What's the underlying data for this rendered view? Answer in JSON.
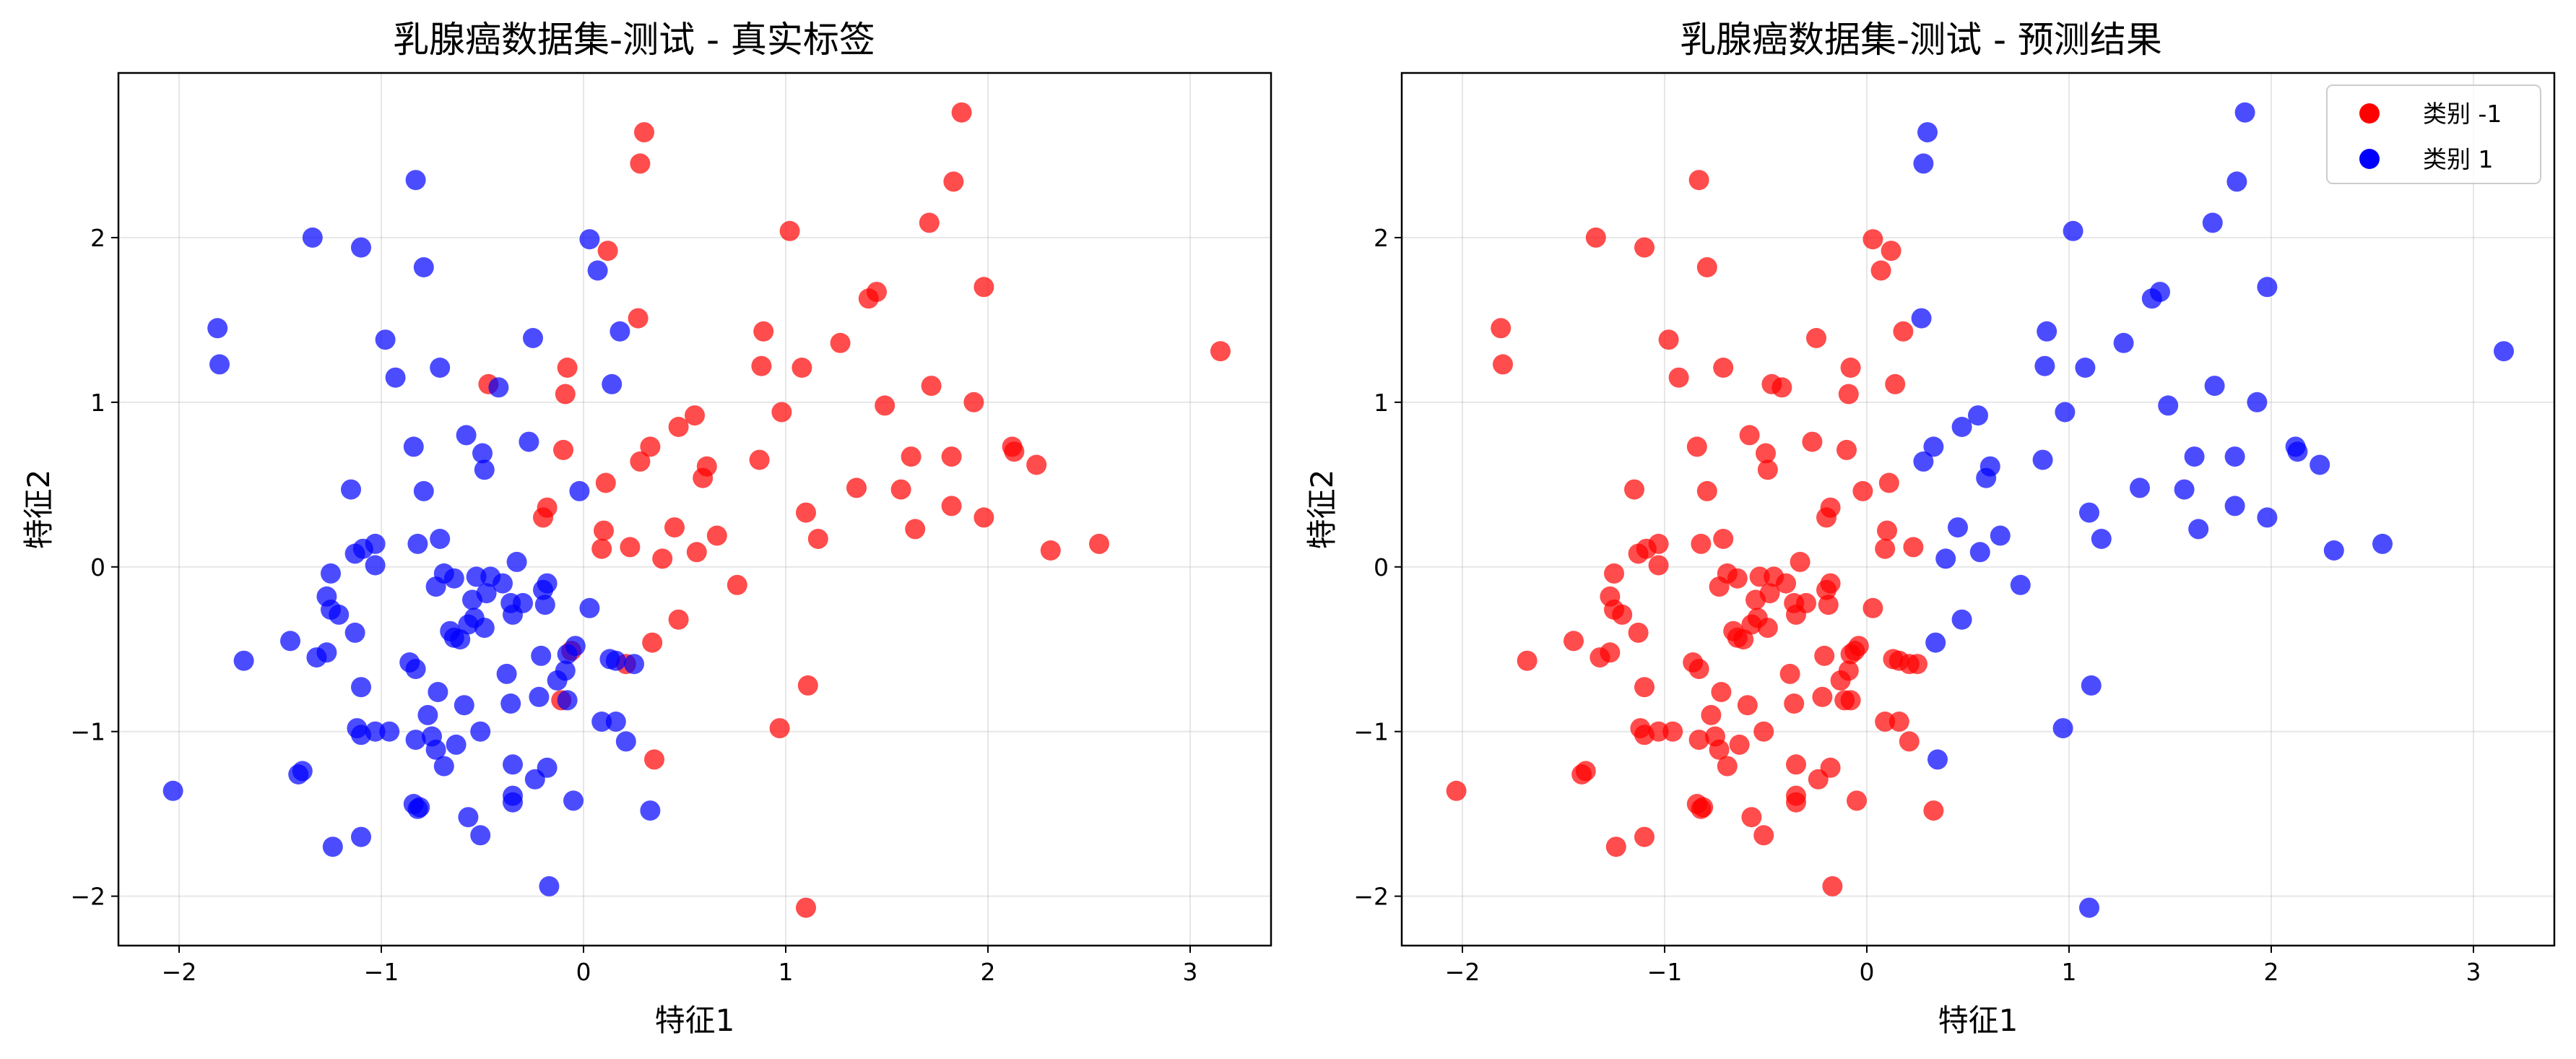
{
  "colors": {
    "class_neg1": "#ff0000",
    "class_1": "#0000ff"
  },
  "chart_data": [
    {
      "type": "scatter",
      "title": "乳腺癌数据集-测试 - 真实标签",
      "xlabel": "特征1",
      "ylabel": "特征2",
      "xlim": [
        -2.3,
        3.4
      ],
      "ylim": [
        -2.3,
        3.0
      ],
      "xticks": [
        -2,
        -1,
        0,
        1,
        2,
        3
      ],
      "yticks": [
        -2,
        -1,
        0,
        1,
        2
      ],
      "grid": true,
      "legend": "none",
      "coloring": "true_label"
    },
    {
      "type": "scatter",
      "title": "乳腺癌数据集-测试 - 预测结果",
      "xlabel": "特征1",
      "ylabel": "特征2",
      "xlim": [
        -2.3,
        3.4
      ],
      "ylim": [
        -2.3,
        3.0
      ],
      "xticks": [
        -2,
        -1,
        0,
        1,
        2,
        3
      ],
      "yticks": [
        -2,
        -1,
        0,
        1,
        2
      ],
      "grid": true,
      "legend": "top-right",
      "legend_entries": [
        "类别 -1",
        "类别 1"
      ],
      "coloring": "predicted_label"
    }
  ],
  "tick_labels": {
    "x": [
      "−2",
      "−1",
      "0",
      "1",
      "2",
      "3"
    ],
    "y": [
      "−2",
      "−1",
      "0",
      "1",
      "2"
    ]
  },
  "points": [
    {
      "x": 0.3,
      "y": 2.64,
      "t": -1,
      "p": 1
    },
    {
      "x": 0.28,
      "y": 2.45,
      "t": -1,
      "p": 1
    },
    {
      "x": 1.87,
      "y": 2.76,
      "t": -1,
      "p": 1
    },
    {
      "x": 1.83,
      "y": 2.34,
      "t": -1,
      "p": 1
    },
    {
      "x": 1.71,
      "y": 2.09,
      "t": -1,
      "p": 1
    },
    {
      "x": 1.02,
      "y": 2.04,
      "t": -1,
      "p": 1
    },
    {
      "x": 0.12,
      "y": 1.92,
      "t": -1,
      "p": -1
    },
    {
      "x": 1.98,
      "y": 1.7,
      "t": -1,
      "p": 1
    },
    {
      "x": 1.45,
      "y": 1.67,
      "t": -1,
      "p": 1
    },
    {
      "x": 1.41,
      "y": 1.63,
      "t": -1,
      "p": 1
    },
    {
      "x": 0.27,
      "y": 1.51,
      "t": -1,
      "p": 1
    },
    {
      "x": 0.89,
      "y": 1.43,
      "t": -1,
      "p": 1
    },
    {
      "x": 1.27,
      "y": 1.36,
      "t": -1,
      "p": 1
    },
    {
      "x": 3.15,
      "y": 1.31,
      "t": -1,
      "p": 1
    },
    {
      "x": 0.88,
      "y": 1.22,
      "t": -1,
      "p": 1
    },
    {
      "x": 1.08,
      "y": 1.21,
      "t": -1,
      "p": 1
    },
    {
      "x": -0.08,
      "y": 1.21,
      "t": -1,
      "p": -1
    },
    {
      "x": -0.47,
      "y": 1.11,
      "t": -1,
      "p": -1
    },
    {
      "x": 1.72,
      "y": 1.1,
      "t": -1,
      "p": 1
    },
    {
      "x": -0.09,
      "y": 1.05,
      "t": -1,
      "p": -1
    },
    {
      "x": 1.49,
      "y": 0.98,
      "t": -1,
      "p": 1
    },
    {
      "x": 1.93,
      "y": 1.0,
      "t": -1,
      "p": 1
    },
    {
      "x": 0.98,
      "y": 0.94,
      "t": -1,
      "p": 1
    },
    {
      "x": 0.55,
      "y": 0.92,
      "t": -1,
      "p": 1
    },
    {
      "x": 0.47,
      "y": 0.85,
      "t": -1,
      "p": 1
    },
    {
      "x": 0.33,
      "y": 0.73,
      "t": -1,
      "p": 1
    },
    {
      "x": 2.12,
      "y": 0.73,
      "t": -1,
      "p": 1
    },
    {
      "x": 2.13,
      "y": 0.7,
      "t": -1,
      "p": 1
    },
    {
      "x": -0.1,
      "y": 0.71,
      "t": -1,
      "p": -1
    },
    {
      "x": 1.62,
      "y": 0.67,
      "t": -1,
      "p": 1
    },
    {
      "x": 1.82,
      "y": 0.67,
      "t": -1,
      "p": 1
    },
    {
      "x": 0.87,
      "y": 0.65,
      "t": -1,
      "p": 1
    },
    {
      "x": 0.28,
      "y": 0.64,
      "t": -1,
      "p": 1
    },
    {
      "x": 2.24,
      "y": 0.62,
      "t": -1,
      "p": 1
    },
    {
      "x": 0.61,
      "y": 0.61,
      "t": -1,
      "p": 1
    },
    {
      "x": 0.59,
      "y": 0.54,
      "t": -1,
      "p": 1
    },
    {
      "x": 0.11,
      "y": 0.51,
      "t": -1,
      "p": -1
    },
    {
      "x": 1.35,
      "y": 0.48,
      "t": -1,
      "p": 1
    },
    {
      "x": 1.57,
      "y": 0.47,
      "t": -1,
      "p": 1
    },
    {
      "x": 1.82,
      "y": 0.37,
      "t": -1,
      "p": 1
    },
    {
      "x": -0.18,
      "y": 0.36,
      "t": -1,
      "p": -1
    },
    {
      "x": 1.1,
      "y": 0.33,
      "t": -1,
      "p": 1
    },
    {
      "x": -0.2,
      "y": 0.3,
      "t": -1,
      "p": -1
    },
    {
      "x": 1.98,
      "y": 0.3,
      "t": -1,
      "p": 1
    },
    {
      "x": 0.45,
      "y": 0.24,
      "t": -1,
      "p": 1
    },
    {
      "x": 1.64,
      "y": 0.23,
      "t": -1,
      "p": 1
    },
    {
      "x": 0.1,
      "y": 0.22,
      "t": -1,
      "p": -1
    },
    {
      "x": 0.66,
      "y": 0.19,
      "t": -1,
      "p": 1
    },
    {
      "x": 1.16,
      "y": 0.17,
      "t": -1,
      "p": 1
    },
    {
      "x": 2.55,
      "y": 0.14,
      "t": -1,
      "p": 1
    },
    {
      "x": 0.23,
      "y": 0.12,
      "t": -1,
      "p": -1
    },
    {
      "x": 0.09,
      "y": 0.11,
      "t": -1,
      "p": -1
    },
    {
      "x": 2.31,
      "y": 0.1,
      "t": -1,
      "p": 1
    },
    {
      "x": 0.56,
      "y": 0.09,
      "t": -1,
      "p": 1
    },
    {
      "x": 0.39,
      "y": 0.05,
      "t": -1,
      "p": 1
    },
    {
      "x": 0.76,
      "y": -0.11,
      "t": -1,
      "p": 1
    },
    {
      "x": 0.47,
      "y": -0.32,
      "t": -1,
      "p": 1
    },
    {
      "x": 0.34,
      "y": -0.46,
      "t": -1,
      "p": 1
    },
    {
      "x": -0.06,
      "y": -0.51,
      "t": -1,
      "p": -1
    },
    {
      "x": 0.21,
      "y": -0.59,
      "t": -1,
      "p": -1
    },
    {
      "x": 1.11,
      "y": -0.72,
      "t": -1,
      "p": 1
    },
    {
      "x": -0.11,
      "y": -0.81,
      "t": -1,
      "p": -1
    },
    {
      "x": 0.97,
      "y": -0.98,
      "t": -1,
      "p": 1
    },
    {
      "x": 0.35,
      "y": -1.17,
      "t": -1,
      "p": 1
    },
    {
      "x": 1.1,
      "y": -2.07,
      "t": -1,
      "p": 1
    },
    {
      "x": -0.83,
      "y": 2.35,
      "t": 1,
      "p": -1
    },
    {
      "x": -1.34,
      "y": 2.0,
      "t": 1,
      "p": -1
    },
    {
      "x": 0.03,
      "y": 1.99,
      "t": 1,
      "p": -1
    },
    {
      "x": -1.1,
      "y": 1.94,
      "t": 1,
      "p": -1
    },
    {
      "x": -0.79,
      "y": 1.82,
      "t": 1,
      "p": -1
    },
    {
      "x": 0.07,
      "y": 1.8,
      "t": 1,
      "p": -1
    },
    {
      "x": -1.81,
      "y": 1.45,
      "t": 1,
      "p": -1
    },
    {
      "x": 0.18,
      "y": 1.43,
      "t": 1,
      "p": -1
    },
    {
      "x": -0.98,
      "y": 1.38,
      "t": 1,
      "p": -1
    },
    {
      "x": -0.25,
      "y": 1.39,
      "t": 1,
      "p": -1
    },
    {
      "x": -1.8,
      "y": 1.23,
      "t": 1,
      "p": -1
    },
    {
      "x": -0.71,
      "y": 1.21,
      "t": 1,
      "p": -1
    },
    {
      "x": -0.93,
      "y": 1.15,
      "t": 1,
      "p": -1
    },
    {
      "x": 0.14,
      "y": 1.11,
      "t": 1,
      "p": -1
    },
    {
      "x": -0.42,
      "y": 1.09,
      "t": 1,
      "p": -1
    },
    {
      "x": -0.58,
      "y": 0.8,
      "t": 1,
      "p": -1
    },
    {
      "x": -0.27,
      "y": 0.76,
      "t": 1,
      "p": -1
    },
    {
      "x": -0.84,
      "y": 0.73,
      "t": 1,
      "p": -1
    },
    {
      "x": -0.5,
      "y": 0.69,
      "t": 1,
      "p": -1
    },
    {
      "x": -0.49,
      "y": 0.59,
      "t": 1,
      "p": -1
    },
    {
      "x": -1.15,
      "y": 0.47,
      "t": 1,
      "p": -1
    },
    {
      "x": -0.79,
      "y": 0.46,
      "t": 1,
      "p": -1
    },
    {
      "x": -0.02,
      "y": 0.46,
      "t": 1,
      "p": -1
    },
    {
      "x": -0.71,
      "y": 0.17,
      "t": 1,
      "p": -1
    },
    {
      "x": -0.82,
      "y": 0.14,
      "t": 1,
      "p": -1
    },
    {
      "x": -1.03,
      "y": 0.14,
      "t": 1,
      "p": -1
    },
    {
      "x": -1.09,
      "y": 0.11,
      "t": 1,
      "p": -1
    },
    {
      "x": -1.13,
      "y": 0.08,
      "t": 1,
      "p": -1
    },
    {
      "x": -0.33,
      "y": 0.03,
      "t": 1,
      "p": -1
    },
    {
      "x": -1.03,
      "y": 0.01,
      "t": 1,
      "p": -1
    },
    {
      "x": -1.25,
      "y": -0.04,
      "t": 1,
      "p": -1
    },
    {
      "x": -0.69,
      "y": -0.04,
      "t": 1,
      "p": -1
    },
    {
      "x": -0.53,
      "y": -0.06,
      "t": 1,
      "p": -1
    },
    {
      "x": -0.46,
      "y": -0.06,
      "t": 1,
      "p": -1
    },
    {
      "x": -0.64,
      "y": -0.07,
      "t": 1,
      "p": -1
    },
    {
      "x": -0.18,
      "y": -0.1,
      "t": 1,
      "p": -1
    },
    {
      "x": -0.4,
      "y": -0.1,
      "t": 1,
      "p": -1
    },
    {
      "x": -0.73,
      "y": -0.12,
      "t": 1,
      "p": -1
    },
    {
      "x": -0.2,
      "y": -0.14,
      "t": 1,
      "p": -1
    },
    {
      "x": -0.48,
      "y": -0.16,
      "t": 1,
      "p": -1
    },
    {
      "x": -1.27,
      "y": -0.18,
      "t": 1,
      "p": -1
    },
    {
      "x": -0.55,
      "y": -0.2,
      "t": 1,
      "p": -1
    },
    {
      "x": -0.36,
      "y": -0.22,
      "t": 1,
      "p": -1
    },
    {
      "x": -0.3,
      "y": -0.22,
      "t": 1,
      "p": -1
    },
    {
      "x": -0.19,
      "y": -0.23,
      "t": 1,
      "p": -1
    },
    {
      "x": 0.03,
      "y": -0.25,
      "t": 1,
      "p": -1
    },
    {
      "x": -1.25,
      "y": -0.26,
      "t": 1,
      "p": -1
    },
    {
      "x": -0.35,
      "y": -0.29,
      "t": 1,
      "p": -1
    },
    {
      "x": -1.21,
      "y": -0.29,
      "t": 1,
      "p": -1
    },
    {
      "x": -0.54,
      "y": -0.31,
      "t": 1,
      "p": -1
    },
    {
      "x": -0.57,
      "y": -0.35,
      "t": 1,
      "p": -1
    },
    {
      "x": -0.49,
      "y": -0.37,
      "t": 1,
      "p": -1
    },
    {
      "x": -0.66,
      "y": -0.39,
      "t": 1,
      "p": -1
    },
    {
      "x": -1.13,
      "y": -0.4,
      "t": 1,
      "p": -1
    },
    {
      "x": -0.64,
      "y": -0.43,
      "t": 1,
      "p": -1
    },
    {
      "x": -0.61,
      "y": -0.44,
      "t": 1,
      "p": -1
    },
    {
      "x": -1.45,
      "y": -0.45,
      "t": 1,
      "p": -1
    },
    {
      "x": -0.04,
      "y": -0.48,
      "t": 1,
      "p": -1
    },
    {
      "x": -1.27,
      "y": -0.52,
      "t": 1,
      "p": -1
    },
    {
      "x": -0.08,
      "y": -0.53,
      "t": 1,
      "p": -1
    },
    {
      "x": -0.21,
      "y": -0.54,
      "t": 1,
      "p": -1
    },
    {
      "x": -1.32,
      "y": -0.55,
      "t": 1,
      "p": -1
    },
    {
      "x": -1.68,
      "y": -0.57,
      "t": 1,
      "p": -1
    },
    {
      "x": 0.13,
      "y": -0.56,
      "t": 1,
      "p": -1
    },
    {
      "x": 0.16,
      "y": -0.57,
      "t": 1,
      "p": -1
    },
    {
      "x": -0.86,
      "y": -0.58,
      "t": 1,
      "p": -1
    },
    {
      "x": -0.83,
      "y": -0.62,
      "t": 1,
      "p": -1
    },
    {
      "x": 0.25,
      "y": -0.59,
      "t": 1,
      "p": -1
    },
    {
      "x": -0.38,
      "y": -0.65,
      "t": 1,
      "p": -1
    },
    {
      "x": -0.09,
      "y": -0.63,
      "t": 1,
      "p": -1
    },
    {
      "x": -0.13,
      "y": -0.69,
      "t": 1,
      "p": -1
    },
    {
      "x": -1.1,
      "y": -0.73,
      "t": 1,
      "p": -1
    },
    {
      "x": -0.72,
      "y": -0.76,
      "t": 1,
      "p": -1
    },
    {
      "x": -0.22,
      "y": -0.79,
      "t": 1,
      "p": -1
    },
    {
      "x": -0.08,
      "y": -0.81,
      "t": 1,
      "p": -1
    },
    {
      "x": -0.36,
      "y": -0.83,
      "t": 1,
      "p": -1
    },
    {
      "x": -0.59,
      "y": -0.84,
      "t": 1,
      "p": -1
    },
    {
      "x": -0.77,
      "y": -0.9,
      "t": 1,
      "p": -1
    },
    {
      "x": 0.09,
      "y": -0.94,
      "t": 1,
      "p": -1
    },
    {
      "x": 0.16,
      "y": -0.94,
      "t": 1,
      "p": -1
    },
    {
      "x": -1.12,
      "y": -0.98,
      "t": 1,
      "p": -1
    },
    {
      "x": -0.96,
      "y": -1.0,
      "t": 1,
      "p": -1
    },
    {
      "x": -1.03,
      "y": -1.0,
      "t": 1,
      "p": -1
    },
    {
      "x": -0.51,
      "y": -1.0,
      "t": 1,
      "p": -1
    },
    {
      "x": -1.1,
      "y": -1.02,
      "t": 1,
      "p": -1
    },
    {
      "x": -0.75,
      "y": -1.03,
      "t": 1,
      "p": -1
    },
    {
      "x": -0.83,
      "y": -1.05,
      "t": 1,
      "p": -1
    },
    {
      "x": 0.21,
      "y": -1.06,
      "t": 1,
      "p": -1
    },
    {
      "x": -0.63,
      "y": -1.08,
      "t": 1,
      "p": -1
    },
    {
      "x": -0.73,
      "y": -1.11,
      "t": 1,
      "p": -1
    },
    {
      "x": -0.69,
      "y": -1.21,
      "t": 1,
      "p": -1
    },
    {
      "x": -0.35,
      "y": -1.2,
      "t": 1,
      "p": -1
    },
    {
      "x": -0.18,
      "y": -1.22,
      "t": 1,
      "p": -1
    },
    {
      "x": -1.39,
      "y": -1.24,
      "t": 1,
      "p": -1
    },
    {
      "x": -1.41,
      "y": -1.26,
      "t": 1,
      "p": -1
    },
    {
      "x": -0.24,
      "y": -1.29,
      "t": 1,
      "p": -1
    },
    {
      "x": -2.03,
      "y": -1.36,
      "t": 1,
      "p": -1
    },
    {
      "x": -0.35,
      "y": -1.39,
      "t": 1,
      "p": -1
    },
    {
      "x": -0.35,
      "y": -1.43,
      "t": 1,
      "p": -1
    },
    {
      "x": -0.05,
      "y": -1.42,
      "t": 1,
      "p": -1
    },
    {
      "x": -0.84,
      "y": -1.44,
      "t": 1,
      "p": -1
    },
    {
      "x": -0.81,
      "y": -1.46,
      "t": 1,
      "p": -1
    },
    {
      "x": -0.82,
      "y": -1.47,
      "t": 1,
      "p": -1
    },
    {
      "x": 0.33,
      "y": -1.48,
      "t": 1,
      "p": -1
    },
    {
      "x": -0.57,
      "y": -1.52,
      "t": 1,
      "p": -1
    },
    {
      "x": -1.1,
      "y": -1.64,
      "t": 1,
      "p": -1
    },
    {
      "x": -0.51,
      "y": -1.63,
      "t": 1,
      "p": -1
    },
    {
      "x": -1.24,
      "y": -1.7,
      "t": 1,
      "p": -1
    },
    {
      "x": -0.17,
      "y": -1.94,
      "t": 1,
      "p": -1
    }
  ]
}
